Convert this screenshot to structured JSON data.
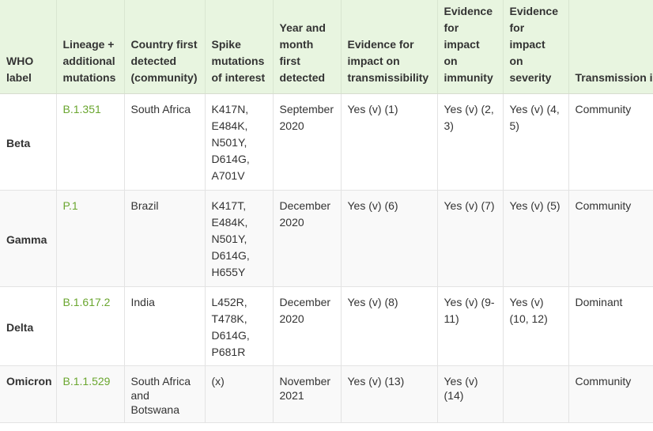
{
  "table": {
    "headers": [
      "WHO label",
      "Lineage + additional mutations",
      "Country first detected (community)",
      "Spike mutations of interest",
      "Year and month first detected",
      "Evidence for impact on transmissibility",
      "Evidence for impact on immunity",
      "Evidence for impact on severity",
      "Transmission in EU/EEA"
    ],
    "rows": [
      {
        "who_label": "Beta",
        "lineage": "B.1.351",
        "country": "South Africa",
        "spike_mutations": [
          "K417N,",
          "E484K,",
          "N501Y,",
          "D614G,",
          "A701V"
        ],
        "first_detected": "September 2020",
        "transmissibility": "Yes (v) (1)",
        "immunity": "Yes (v) (2, 3)",
        "severity": "Yes (v) (4, 5)",
        "transmission": "Community"
      },
      {
        "who_label": "Gamma",
        "lineage": "P.1",
        "country": "Brazil",
        "spike_mutations": [
          "K417T,",
          "E484K,",
          "N501Y,",
          "D614G,",
          "H655Y"
        ],
        "first_detected": "December 2020",
        "transmissibility": "Yes (v) (6)",
        "immunity": "Yes (v) (7)",
        "severity": "Yes (v) (5)",
        "transmission": "Community"
      },
      {
        "who_label": "Delta",
        "lineage": "B.1.617.2",
        "country": "India",
        "spike_mutations": [
          "L452R,",
          "T478K,",
          "D614G,",
          "P681R"
        ],
        "first_detected": "December 2020",
        "transmissibility": "Yes (v) (8)",
        "immunity": "Yes (v) (9-11)",
        "severity": "Yes (v) (10, 12)",
        "transmission": "Dominant"
      },
      {
        "who_label": "Omicron",
        "lineage": "B.1.1.529",
        "country": "South Africa and Botswana",
        "spike_mutations": [
          "(x)"
        ],
        "first_detected": "November 2021",
        "transmissibility": "Yes (v) (13)",
        "immunity": "Yes (v) (14)",
        "severity": "",
        "transmission": "Community"
      }
    ]
  }
}
